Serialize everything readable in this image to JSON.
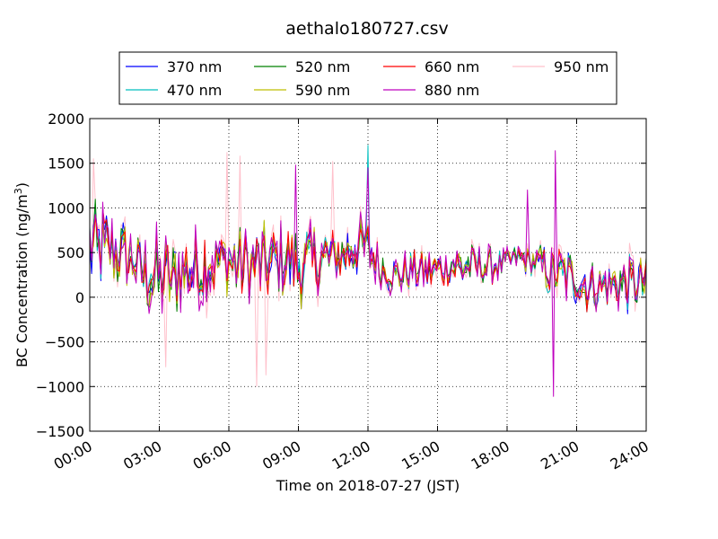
{
  "chart_data": {
    "type": "line",
    "title": "aethalo180727.csv",
    "xlabel": "Time on 2018-07-27 (JST)",
    "ylabel": "BC Concentration (ng/m",
    "ylabel_sup": "3",
    "ylabel_close": ")",
    "xlim": [
      "00:00",
      "24:00"
    ],
    "ylim": [
      -1500,
      2000
    ],
    "grid": true,
    "legend_position": "top-center",
    "x_ticks": [
      "00:00",
      "03:00",
      "06:00",
      "09:00",
      "12:00",
      "15:00",
      "18:00",
      "21:00",
      "24:00"
    ],
    "y_ticks": [
      "2000",
      "1500",
      "1000",
      "500",
      "0",
      "−500",
      "−1000",
      "−1500"
    ],
    "series": [
      {
        "name": "370 nm",
        "color": "#0000ff"
      },
      {
        "name": "470 nm",
        "color": "#00bfbf"
      },
      {
        "name": "520 nm",
        "color": "#008000"
      },
      {
        "name": "590 nm",
        "color": "#bfbf00"
      },
      {
        "name": "660 nm",
        "color": "#ff0000"
      },
      {
        "name": "880 nm",
        "color": "#bf00bf"
      },
      {
        "name": "950 nm",
        "color": "#ffc0cb"
      }
    ],
    "envelope": {
      "hours": [
        0,
        0.5,
        1,
        1.5,
        2,
        2.5,
        3,
        3.5,
        4,
        4.5,
        5,
        5.5,
        6,
        6.5,
        7,
        7.5,
        8,
        8.5,
        9,
        9.5,
        10,
        10.5,
        11,
        11.5,
        12,
        12.5,
        13,
        13.5,
        14,
        14.5,
        15,
        15.5,
        16,
        16.5,
        17,
        17.5,
        18,
        18.5,
        19,
        19.5,
        20,
        20.5,
        21,
        21.5,
        22,
        22.5,
        23,
        23.5,
        24
      ],
      "center": [
        500,
        550,
        500,
        450,
        350,
        250,
        250,
        200,
        300,
        300,
        350,
        450,
        400,
        350,
        350,
        350,
        400,
        400,
        350,
        400,
        450,
        450,
        500,
        600,
        550,
        350,
        250,
        250,
        300,
        300,
        300,
        350,
        350,
        350,
        350,
        350,
        400,
        450,
        400,
        350,
        250,
        250,
        200,
        150,
        150,
        150,
        150,
        150,
        150
      ],
      "amplitude": [
        600,
        550,
        450,
        450,
        400,
        450,
        550,
        500,
        450,
        500,
        550,
        450,
        400,
        450,
        450,
        500,
        450,
        450,
        500,
        450,
        450,
        350,
        350,
        400,
        350,
        250,
        250,
        250,
        250,
        250,
        250,
        250,
        300,
        250,
        250,
        200,
        150,
        150,
        200,
        250,
        350,
        350,
        350,
        350,
        300,
        300,
        350,
        350,
        300
      ]
    },
    "peaks": [
      {
        "hour": 0.15,
        "series": "950 nm",
        "value": 1550
      },
      {
        "hour": 5.9,
        "series": "950 nm",
        "value": 1620
      },
      {
        "hour": 6.5,
        "series": "950 nm",
        "value": 1580
      },
      {
        "hour": 8.9,
        "series": "880 nm",
        "value": 1480
      },
      {
        "hour": 10.5,
        "series": "950 nm",
        "value": 1520
      },
      {
        "hour": 12.0,
        "series": "470 nm",
        "value": 1700
      },
      {
        "hour": 12.0,
        "series": "880 nm",
        "value": 1450
      },
      {
        "hour": 18.9,
        "series": "880 nm",
        "value": 1200
      },
      {
        "hour": 20.1,
        "series": "880 nm",
        "value": 1640
      },
      {
        "hour": 20.0,
        "series": "880 nm",
        "value": -1110
      },
      {
        "hour": 7.2,
        "series": "950 nm",
        "value": -1000
      },
      {
        "hour": 3.3,
        "series": "950 nm",
        "value": -780
      },
      {
        "hour": 7.6,
        "series": "950 nm",
        "value": -870
      }
    ]
  }
}
